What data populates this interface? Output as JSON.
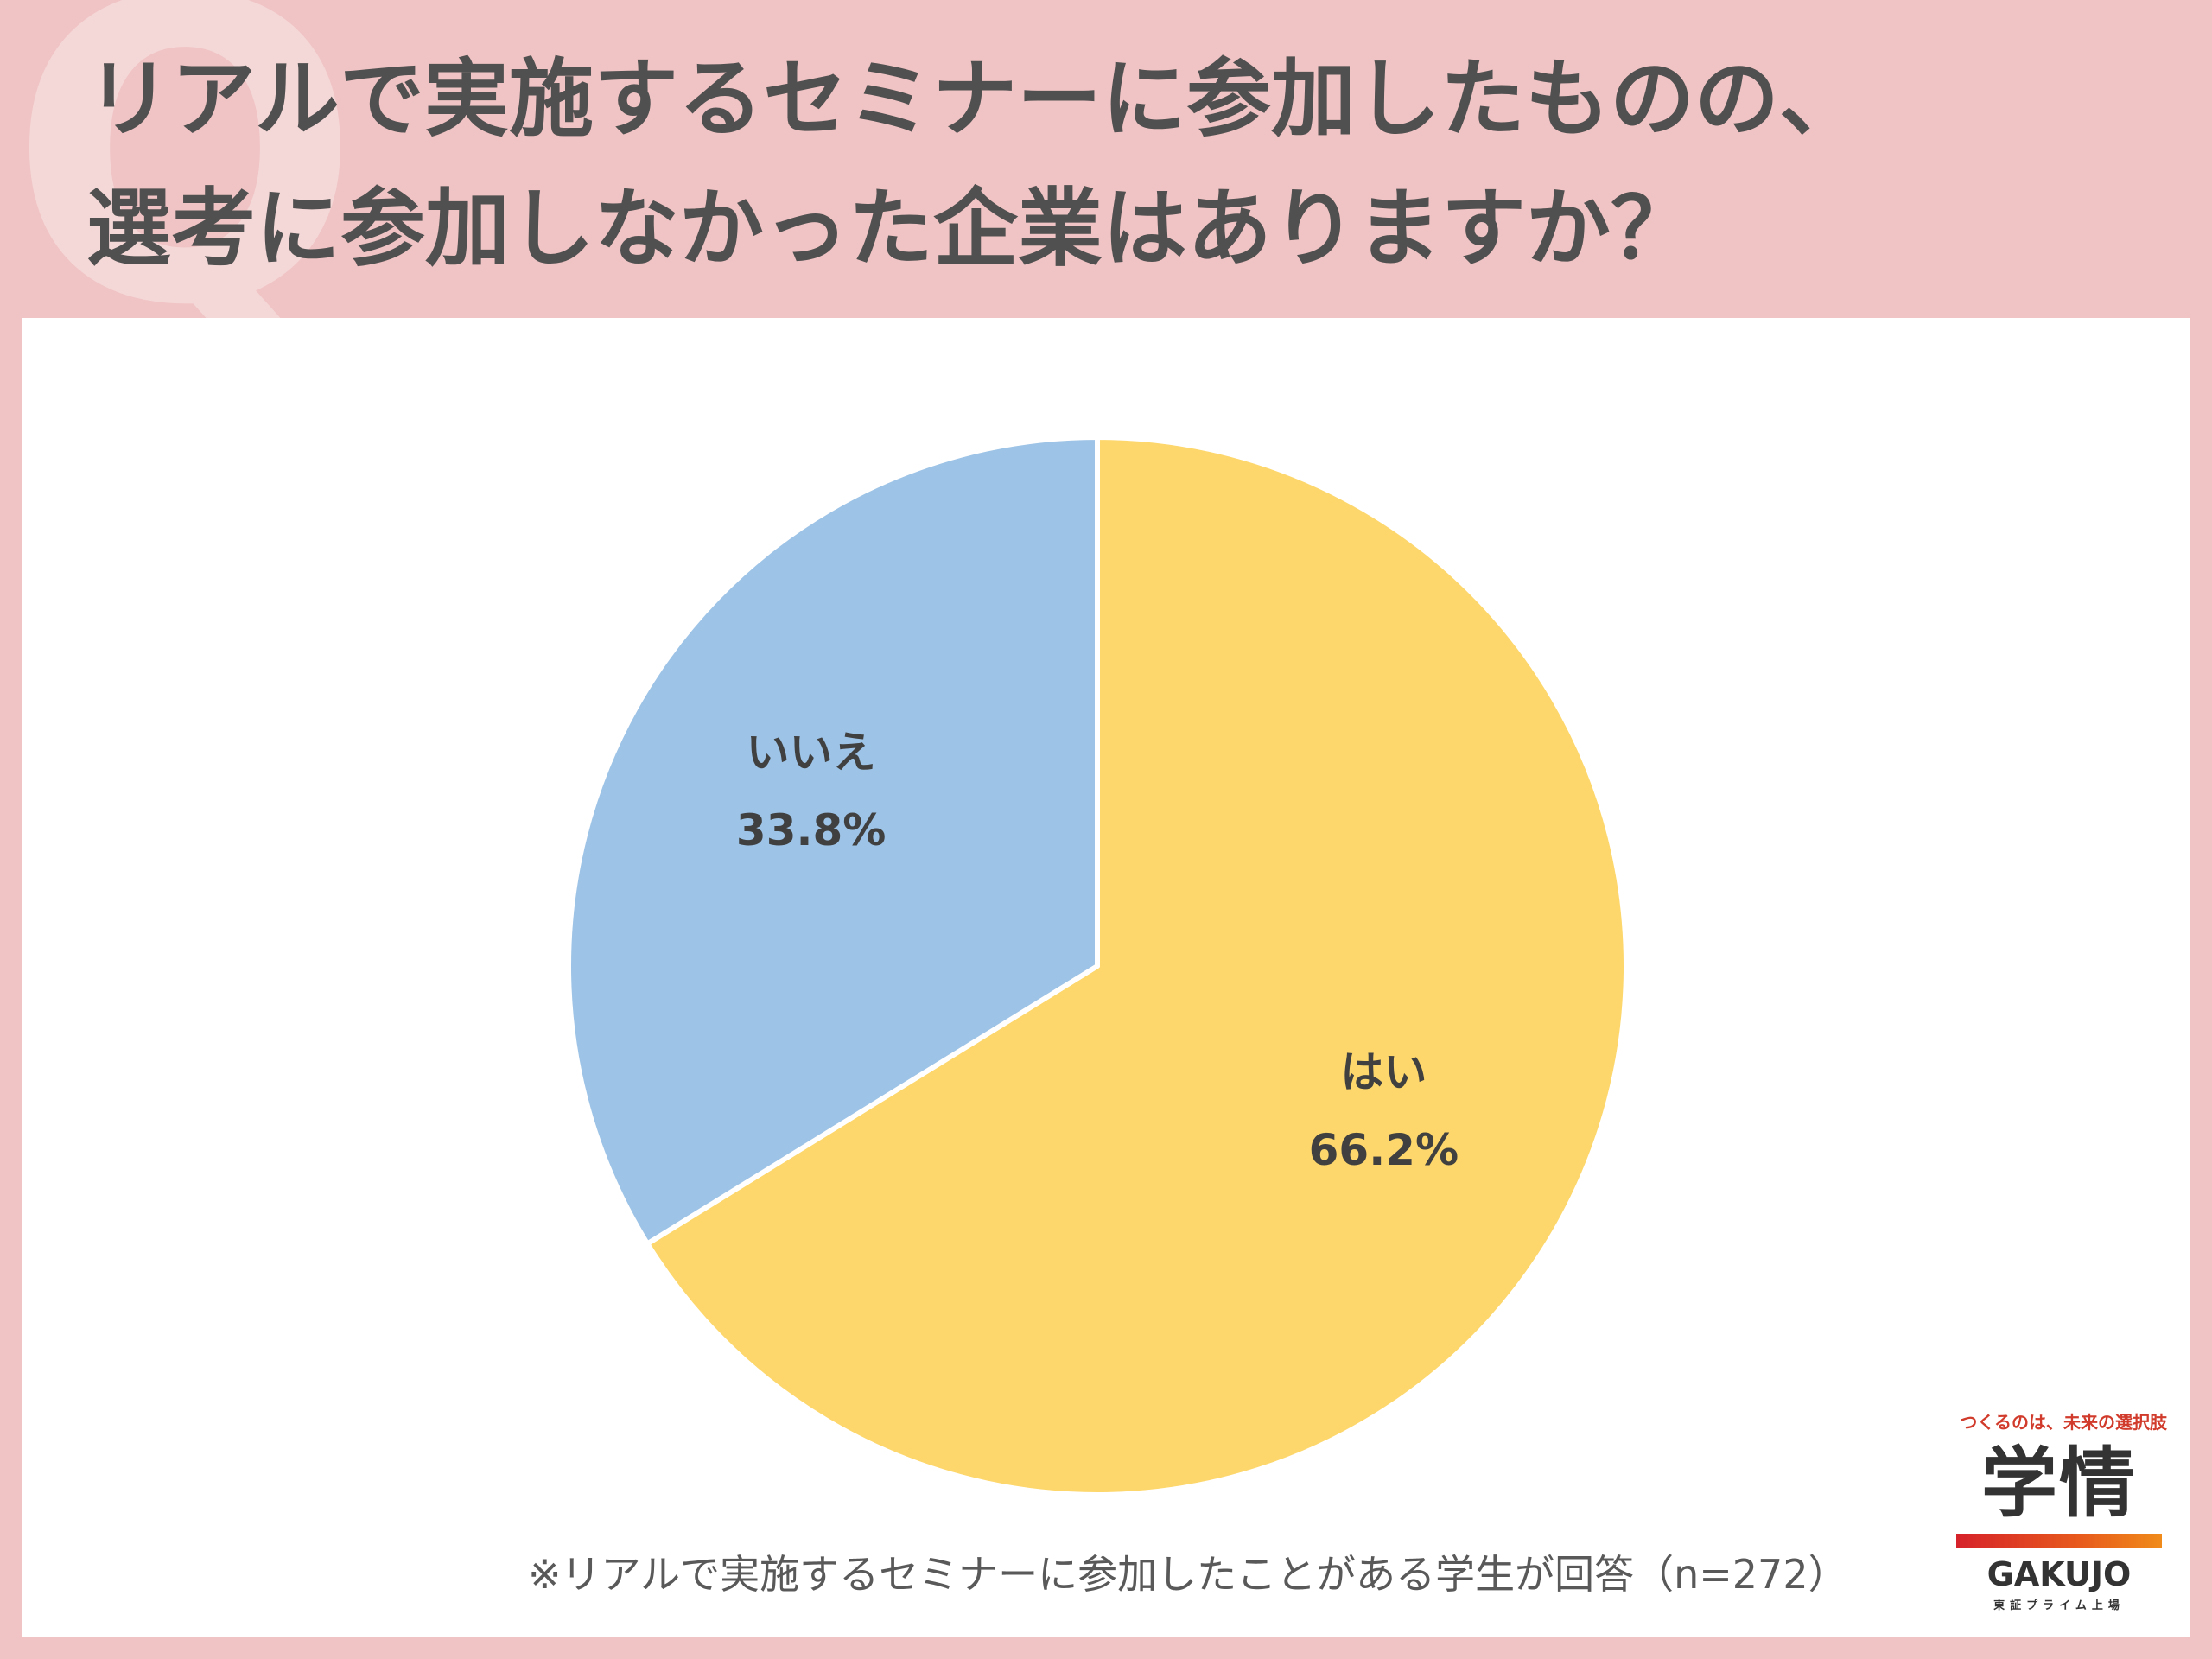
{
  "header": {
    "q_mark": "Q",
    "title_line1": "リアルで実施するセミナーに参加したものの、",
    "title_line2": "選考に参加しなかった企業はありますか？"
  },
  "chart_data": {
    "type": "pie",
    "start_angle_deg": 0,
    "direction": "clockwise",
    "slices": [
      {
        "label": "はい",
        "value": 66.2,
        "value_label": "66.2%",
        "color": "#fdd76b"
      },
      {
        "label": "いいえ",
        "value": 33.8,
        "value_label": "33.8%",
        "color": "#9dc3e6"
      }
    ]
  },
  "footnote": "※リアルで実施するセミナーに参加したことがある学生が回答（n=272）",
  "logo": {
    "tagline": "つくるのは、未来の選択肢",
    "kanji": "学情",
    "wordmark": "GAKUJO",
    "subtitle": "東証プライム上場",
    "colors": {
      "bar_start": "#d6222a",
      "bar_end": "#f08b1a"
    }
  },
  "colors": {
    "background": "#f0c3c4",
    "panel": "#ffffff",
    "title_text": "#505050"
  }
}
